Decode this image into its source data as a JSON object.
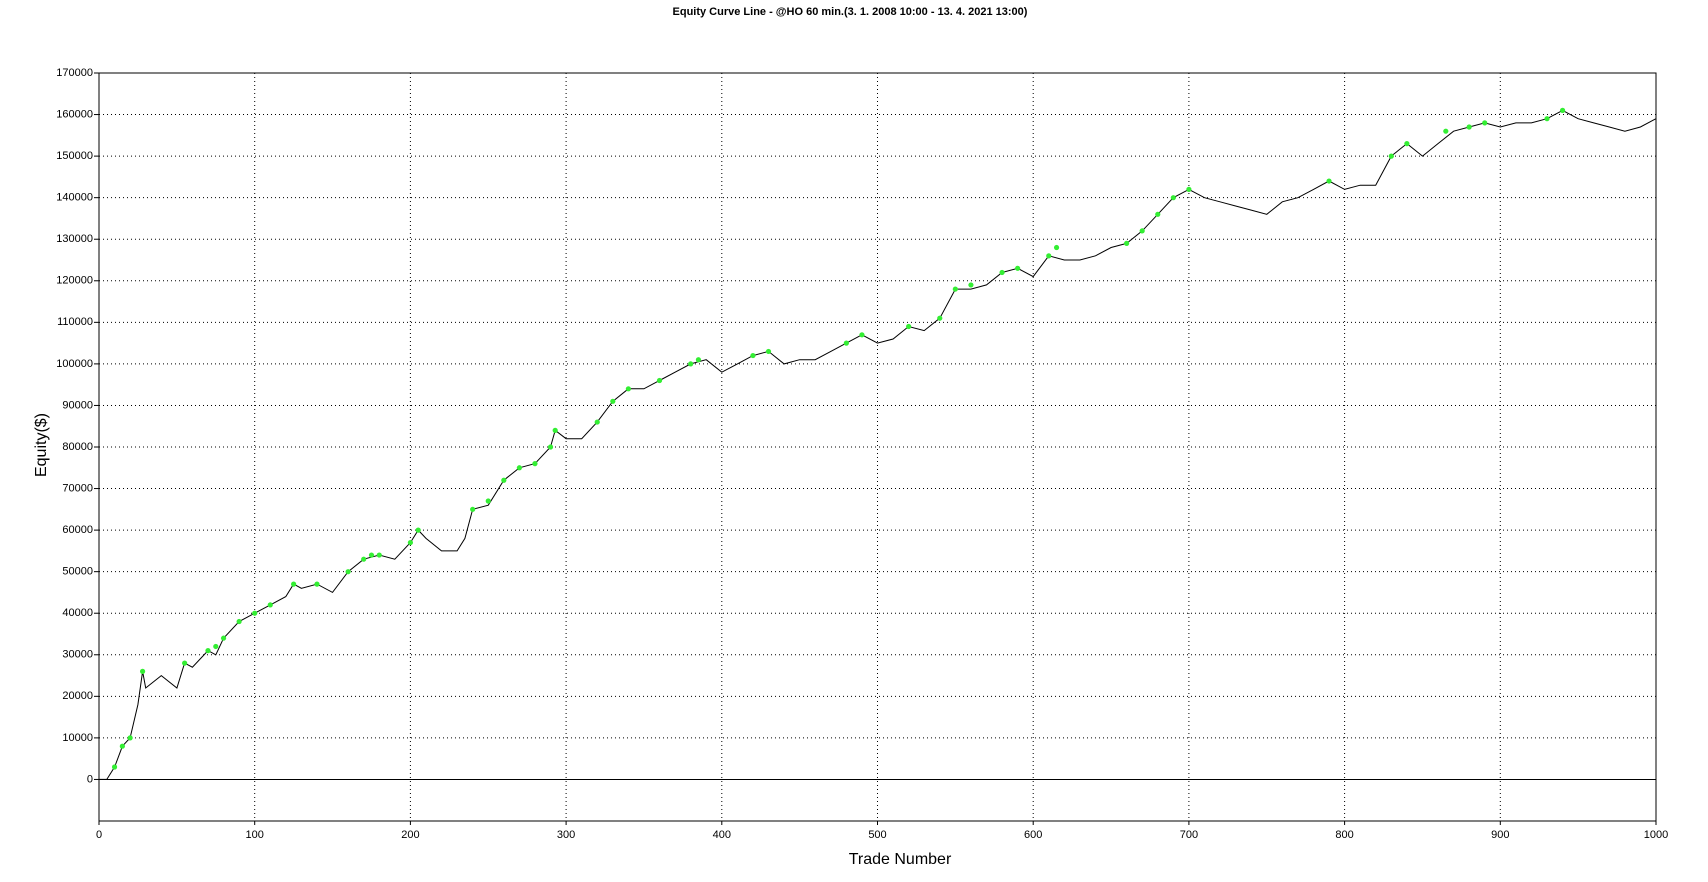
{
  "chart_data": {
    "type": "line",
    "title": "Equity Curve Line - @HO 60 min.(3. 1. 2008 10:00 - 13. 4. 2021 13:00)",
    "x_label": "Trade Number",
    "y_label": "Equity($)",
    "color": "#000000",
    "x": [
      0,
      5,
      10,
      15,
      20,
      25,
      28,
      30,
      40,
      50,
      55,
      60,
      70,
      75,
      80,
      90,
      100,
      110,
      120,
      125,
      130,
      140,
      150,
      160,
      170,
      180,
      190,
      200,
      205,
      210,
      220,
      230,
      235,
      240,
      250,
      260,
      270,
      280,
      290,
      293,
      300,
      310,
      320,
      330,
      340,
      350,
      360,
      370,
      380,
      390,
      400,
      410,
      420,
      430,
      440,
      450,
      460,
      470,
      480,
      490,
      500,
      510,
      520,
      530,
      540,
      550,
      560,
      570,
      580,
      590,
      600,
      610,
      620,
      630,
      640,
      650,
      660,
      670,
      680,
      690,
      700,
      710,
      720,
      730,
      740,
      750,
      760,
      770,
      780,
      790,
      800,
      810,
      820,
      830,
      840,
      850,
      860,
      870,
      880,
      890,
      900,
      910,
      920,
      930,
      940,
      950,
      960,
      970,
      980,
      990,
      1000
    ],
    "values": [
      0,
      0,
      3000,
      8000,
      10000,
      18000,
      26000,
      22000,
      25000,
      22000,
      28000,
      27000,
      31000,
      30000,
      34000,
      38000,
      40000,
      42000,
      44000,
      47000,
      46000,
      47000,
      45000,
      50000,
      53000,
      54000,
      53000,
      57000,
      60000,
      58000,
      55000,
      55000,
      58000,
      65000,
      66000,
      72000,
      75000,
      76000,
      80000,
      84000,
      82000,
      82000,
      86000,
      91000,
      94000,
      94000,
      96000,
      98000,
      100000,
      101000,
      98000,
      100000,
      102000,
      103000,
      100000,
      101000,
      101000,
      103000,
      105000,
      107000,
      105000,
      106000,
      109000,
      108000,
      111000,
      118000,
      118000,
      119000,
      122000,
      123000,
      121000,
      126000,
      125000,
      125000,
      126000,
      128000,
      129000,
      132000,
      136000,
      140000,
      142000,
      140000,
      139000,
      138000,
      137000,
      136000,
      139000,
      140000,
      142000,
      144000,
      142000,
      143000,
      143000,
      150000,
      153000,
      150000,
      153000,
      156000,
      157000,
      158000,
      157000,
      158000,
      158000,
      159000,
      161000,
      159000,
      158000,
      157000,
      156000,
      157000,
      159000
    ],
    "highs": {
      "color": "#33ee33",
      "x": [
        10,
        15,
        20,
        28,
        55,
        70,
        75,
        80,
        90,
        100,
        110,
        125,
        140,
        160,
        170,
        175,
        180,
        200,
        205,
        240,
        250,
        260,
        270,
        280,
        290,
        293,
        320,
        330,
        340,
        360,
        380,
        385,
        420,
        430,
        480,
        490,
        520,
        540,
        550,
        560,
        580,
        590,
        610,
        615,
        660,
        670,
        680,
        690,
        700,
        790,
        830,
        840,
        865,
        880,
        890,
        930,
        940
      ],
      "values": [
        3000,
        8000,
        10000,
        26000,
        28000,
        31000,
        32000,
        34000,
        38000,
        40000,
        42000,
        47000,
        47000,
        50000,
        53000,
        54000,
        54000,
        57000,
        60000,
        65000,
        67000,
        72000,
        75000,
        76000,
        80000,
        84000,
        86000,
        91000,
        94000,
        96000,
        100000,
        101000,
        102000,
        103000,
        105000,
        107000,
        109000,
        111000,
        118000,
        119000,
        122000,
        123000,
        126000,
        128000,
        129000,
        132000,
        136000,
        140000,
        142000,
        144000,
        150000,
        153000,
        156000,
        157000,
        158000,
        159000,
        161000
      ]
    },
    "xlim": [
      0,
      1000
    ],
    "xticks": [
      0,
      100,
      200,
      300,
      400,
      500,
      600,
      700,
      800,
      900,
      1000
    ],
    "ylim": [
      -10000,
      170000
    ],
    "yticks": [
      0,
      10000,
      20000,
      30000,
      40000,
      50000,
      60000,
      70000,
      80000,
      90000,
      100000,
      110000,
      120000,
      130000,
      140000,
      150000,
      160000,
      170000
    ],
    "grid": true
  }
}
